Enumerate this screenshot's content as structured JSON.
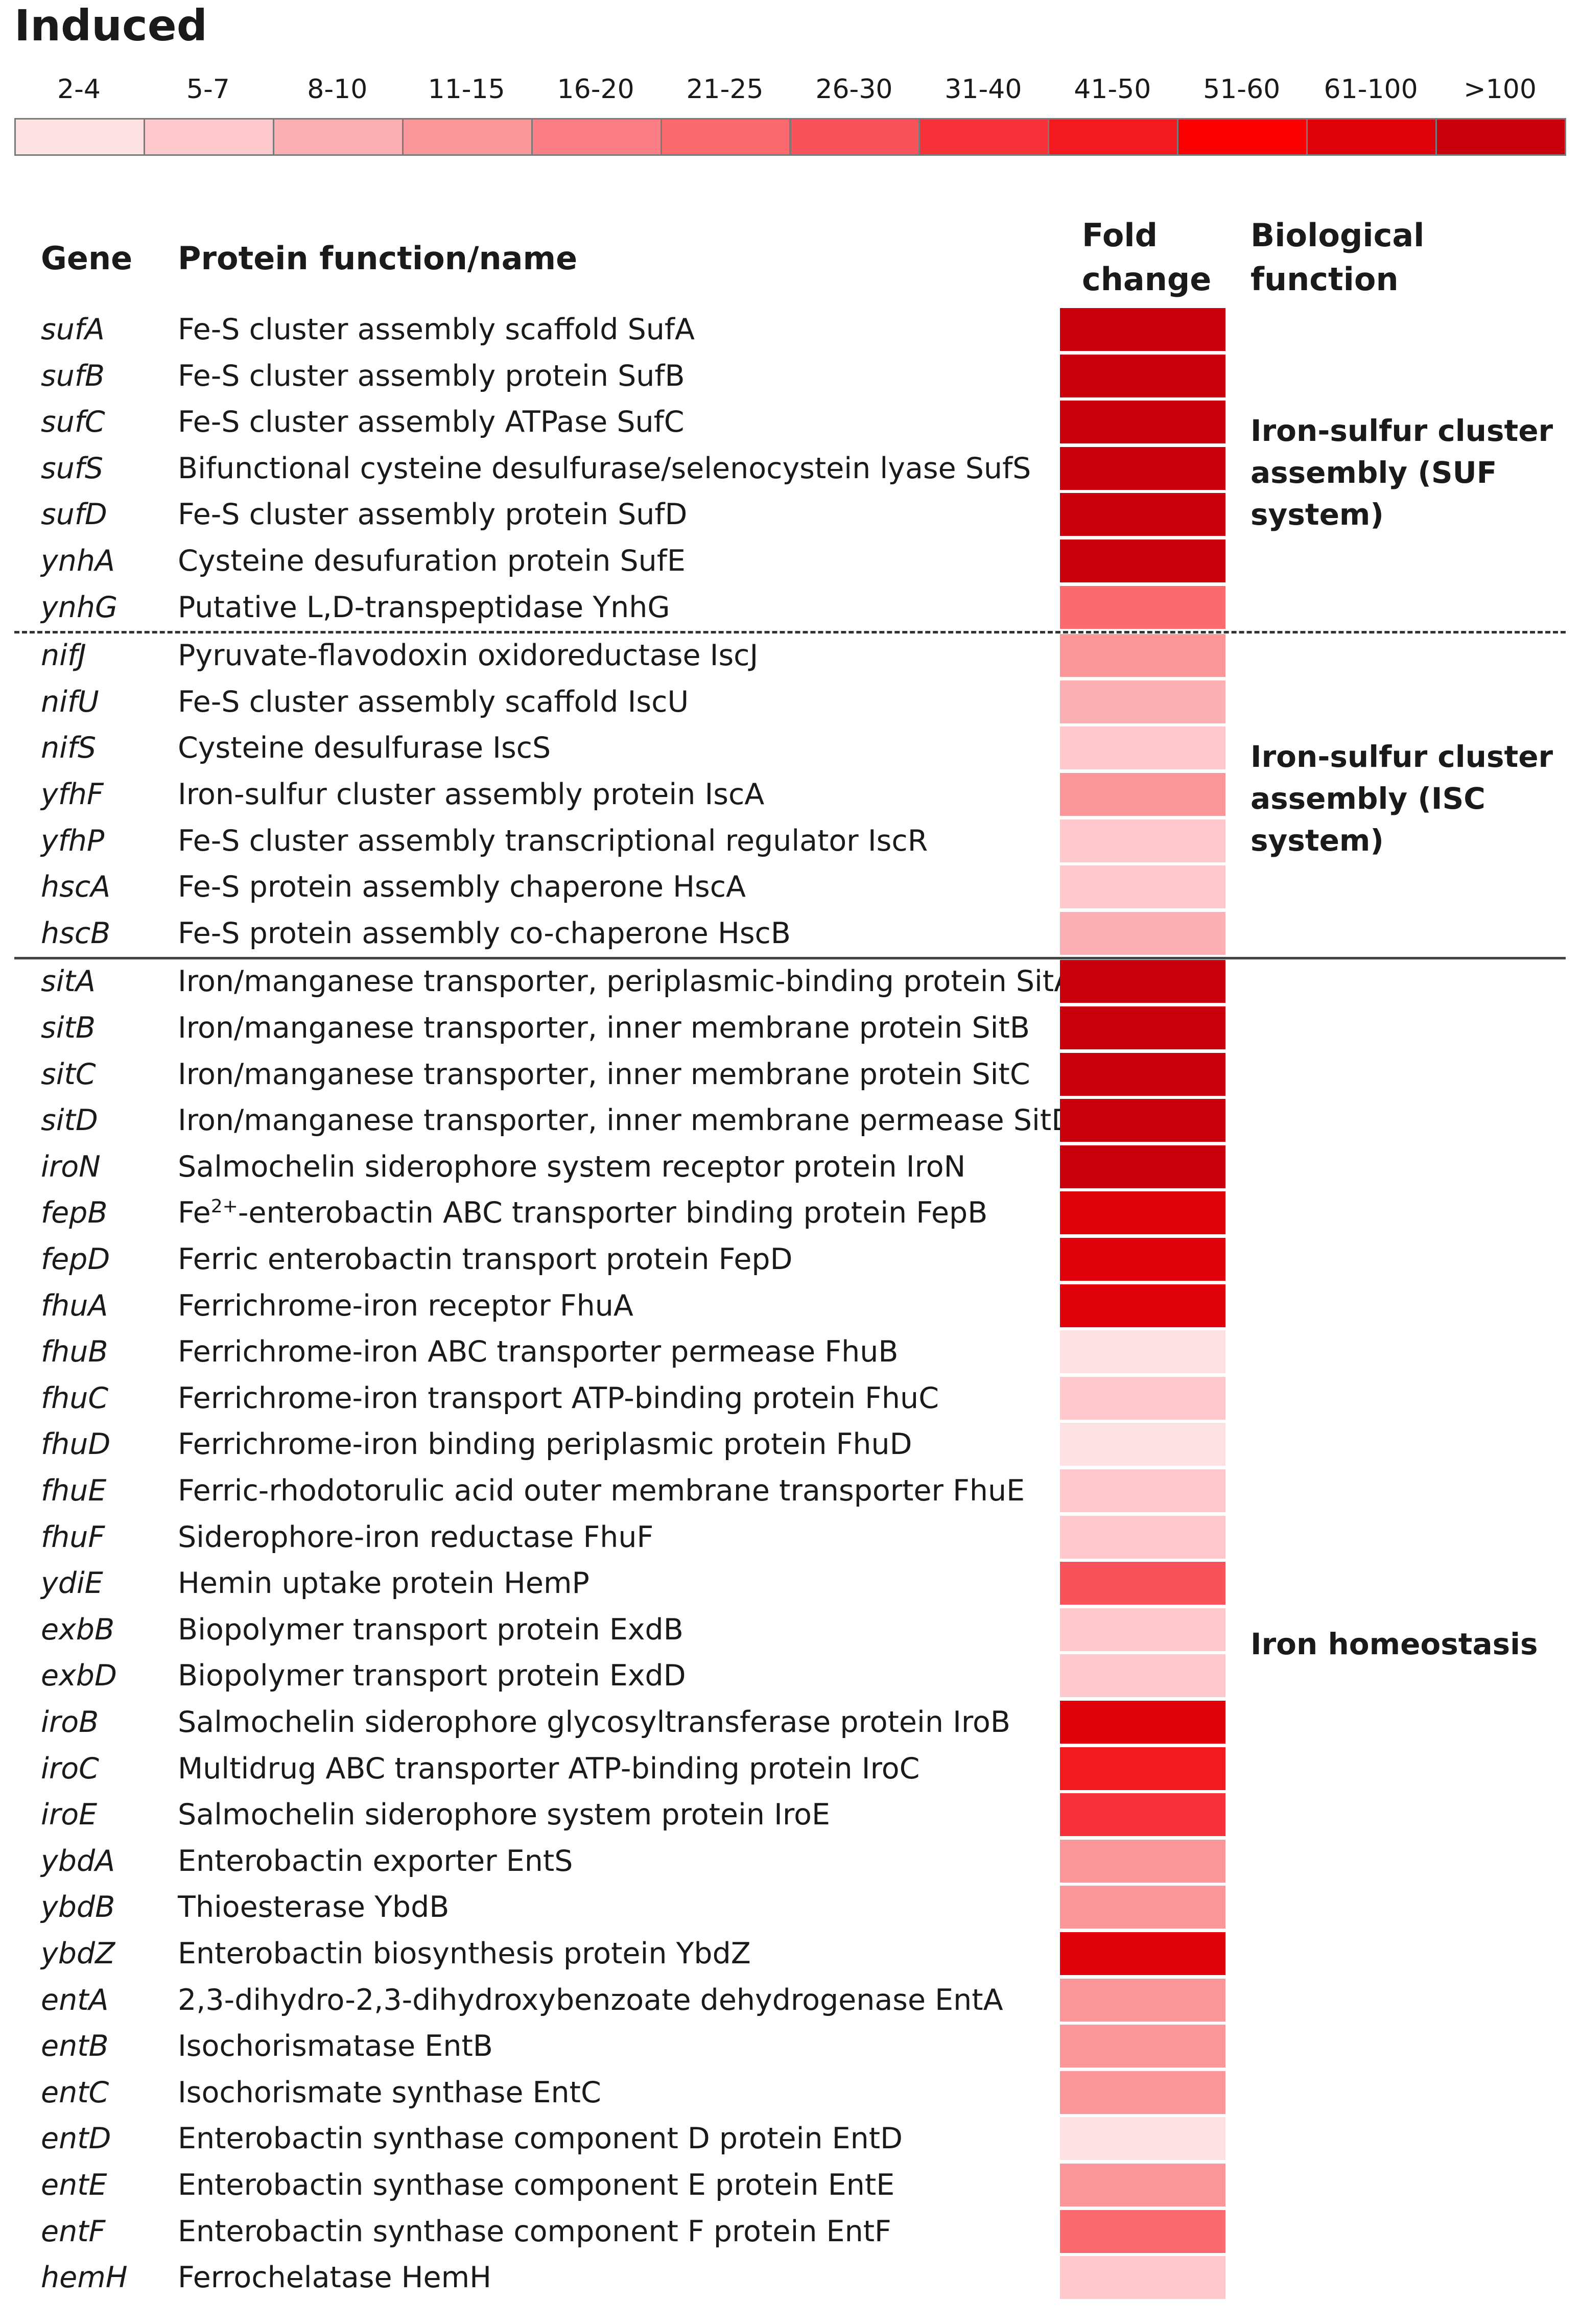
{
  "title": "Induced",
  "headers": {
    "gene": "Gene",
    "protein": "Protein function/name",
    "fold_line1": "Fold",
    "fold_line2": "change",
    "bio_line1": "Biological",
    "bio_line2": "function"
  },
  "chart_data": {
    "type": "heatmap",
    "title": "Induced",
    "value_label": "Fold change",
    "legend": [
      {
        "label": "2-4",
        "color": "#fde1e3"
      },
      {
        "label": "5-7",
        "color": "#fdc9cc"
      },
      {
        "label": "8-10",
        "color": "#fcb0b4"
      },
      {
        "label": "11-15",
        "color": "#fb969b"
      },
      {
        "label": "16-20",
        "color": "#fb7f84"
      },
      {
        "label": "21-25",
        "color": "#fa6a6e"
      },
      {
        "label": "26-30",
        "color": "#f9525a"
      },
      {
        "label": "31-40",
        "color": "#f63238"
      },
      {
        "label": "41-50",
        "color": "#f21a1f"
      },
      {
        "label": "51-60",
        "color": "#fb0000"
      },
      {
        "label": "61-100",
        "color": "#e0000a"
      },
      {
        "label": ">100",
        "color": "#c9000b"
      }
    ],
    "genes": [
      {
        "gene": "sufA",
        "protein": "Fe-S cluster assembly scaffold SufA",
        "bin": ">100"
      },
      {
        "gene": "sufB",
        "protein": "Fe-S cluster assembly protein SufB",
        "bin": ">100"
      },
      {
        "gene": "sufC",
        "protein": "Fe-S cluster assembly ATPase SufC",
        "bin": ">100"
      },
      {
        "gene": "sufS",
        "protein": "Bifunctional cysteine desulfurase/selenocystein lyase SufS",
        "bin": ">100"
      },
      {
        "gene": "sufD",
        "protein": "Fe-S cluster assembly protein SufD",
        "bin": ">100"
      },
      {
        "gene": "ynhA",
        "protein": "Cysteine desufuration protein SufE",
        "bin": ">100"
      },
      {
        "gene": "ynhG",
        "protein": "Putative L,D-transpeptidase YnhG",
        "bin": "21-25"
      },
      {
        "gene": "nifJ",
        "protein": "Pyruvate-flavodoxin oxidoreductase IscJ",
        "bin": "11-15"
      },
      {
        "gene": "nifU",
        "protein": "Fe-S cluster assembly scaffold IscU",
        "bin": "8-10"
      },
      {
        "gene": "nifS",
        "protein": "Cysteine desulfurase IscS",
        "bin": "5-7"
      },
      {
        "gene": "yfhF",
        "protein": "Iron-sulfur cluster assembly protein IscA",
        "bin": "11-15"
      },
      {
        "gene": "yfhP",
        "protein": "Fe-S cluster assembly transcriptional regulator IscR",
        "bin": "5-7"
      },
      {
        "gene": "hscA",
        "protein": "Fe-S protein assembly chaperone HscA",
        "bin": "5-7"
      },
      {
        "gene": "hscB",
        "protein": "Fe-S protein assembly co-chaperone HscB",
        "bin": "8-10"
      },
      {
        "gene": "sitA",
        "protein": "Iron/manganese transporter, periplasmic-binding protein SitA",
        "bin": ">100"
      },
      {
        "gene": "sitB",
        "protein": "Iron/manganese transporter, inner membrane protein SitB",
        "bin": ">100"
      },
      {
        "gene": "sitC",
        "protein": "Iron/manganese transporter, inner membrane protein SitC",
        "bin": ">100"
      },
      {
        "gene": "sitD",
        "protein": "Iron/manganese transporter, inner membrane permease SitD",
        "bin": ">100"
      },
      {
        "gene": "iroN",
        "protein": "Salmochelin siderophore system receptor protein IroN",
        "bin": ">100"
      },
      {
        "gene": "fepB",
        "protein": "Fe",
        "protein_sup": "2+",
        "protein_rest": "-enterobactin ABC transporter binding protein FepB",
        "bin": "61-100"
      },
      {
        "gene": "fepD",
        "protein": "Ferric enterobactin transport protein FepD",
        "bin": "61-100"
      },
      {
        "gene": "fhuA",
        "protein": "Ferrichrome-iron receptor FhuA",
        "bin": "61-100"
      },
      {
        "gene": "fhuB",
        "protein": "Ferrichrome-iron ABC transporter permease FhuB",
        "bin": "2-4"
      },
      {
        "gene": "fhuC",
        "protein": "Ferrichrome-iron transport ATP-binding protein FhuC",
        "bin": "5-7"
      },
      {
        "gene": "fhuD",
        "protein": "Ferrichrome-iron binding periplasmic protein FhuD",
        "bin": "2-4"
      },
      {
        "gene": "fhuE",
        "protein": "Ferric-rhodotorulic acid outer membrane transporter FhuE",
        "bin": "5-7"
      },
      {
        "gene": "fhuF",
        "protein": "Siderophore-iron reductase FhuF",
        "bin": "5-7"
      },
      {
        "gene": "ydiE",
        "protein": "Hemin uptake protein HemP",
        "bin": "26-30"
      },
      {
        "gene": "exbB",
        "protein": "Biopolymer transport protein ExdB",
        "bin": "5-7"
      },
      {
        "gene": "exbD",
        "protein": "Biopolymer transport protein ExdD",
        "bin": "5-7"
      },
      {
        "gene": "iroB",
        "protein": "Salmochelin siderophore glycosyltransferase protein IroB",
        "bin": "61-100"
      },
      {
        "gene": "iroC",
        "protein": "Multidrug ABC transporter ATP-binding protein IroC",
        "bin": "41-50"
      },
      {
        "gene": "iroE",
        "protein": "Salmochelin siderophore system protein IroE",
        "bin": "31-40"
      },
      {
        "gene": "ybdA",
        "protein": "Enterobactin exporter EntS",
        "bin": "11-15"
      },
      {
        "gene": "ybdB",
        "protein": "Thioesterase YbdB",
        "bin": "11-15"
      },
      {
        "gene": "ybdZ",
        "protein": "Enterobactin biosynthesis protein YbdZ",
        "bin": "61-100"
      },
      {
        "gene": "entA",
        "protein": "2,3-dihydro-2,3-dihydroxybenzoate dehydrogenase EntA",
        "bin": "11-15"
      },
      {
        "gene": "entB",
        "protein": "Isochorismatase EntB",
        "bin": "11-15"
      },
      {
        "gene": "entC",
        "protein": "Isochorismate synthase EntC",
        "bin": "11-15"
      },
      {
        "gene": "entD",
        "protein": "Enterobactin synthase component D protein EntD",
        "bin": "2-4"
      },
      {
        "gene": "entE",
        "protein": "Enterobactin synthase component E protein EntE",
        "bin": "11-15"
      },
      {
        "gene": "entF",
        "protein": "Enterobactin synthase component F protein EntF",
        "bin": "21-25"
      },
      {
        "gene": "hemH",
        "protein": "Ferrochelatase HemH",
        "bin": "5-7"
      }
    ],
    "groups": [
      {
        "lines": [
          "Iron-sulfur cluster",
          "assembly (SUF",
          "system)"
        ],
        "first_row": 0,
        "last_row": 6,
        "separator_after": "dashed"
      },
      {
        "lines": [
          "Iron-sulfur cluster",
          "assembly (ISC",
          "system)"
        ],
        "first_row": 7,
        "last_row": 13,
        "separator_after": "solid"
      },
      {
        "lines": [
          "Iron homeostasis"
        ],
        "first_row": 14,
        "last_row": 42,
        "separator_after": "none"
      }
    ]
  }
}
